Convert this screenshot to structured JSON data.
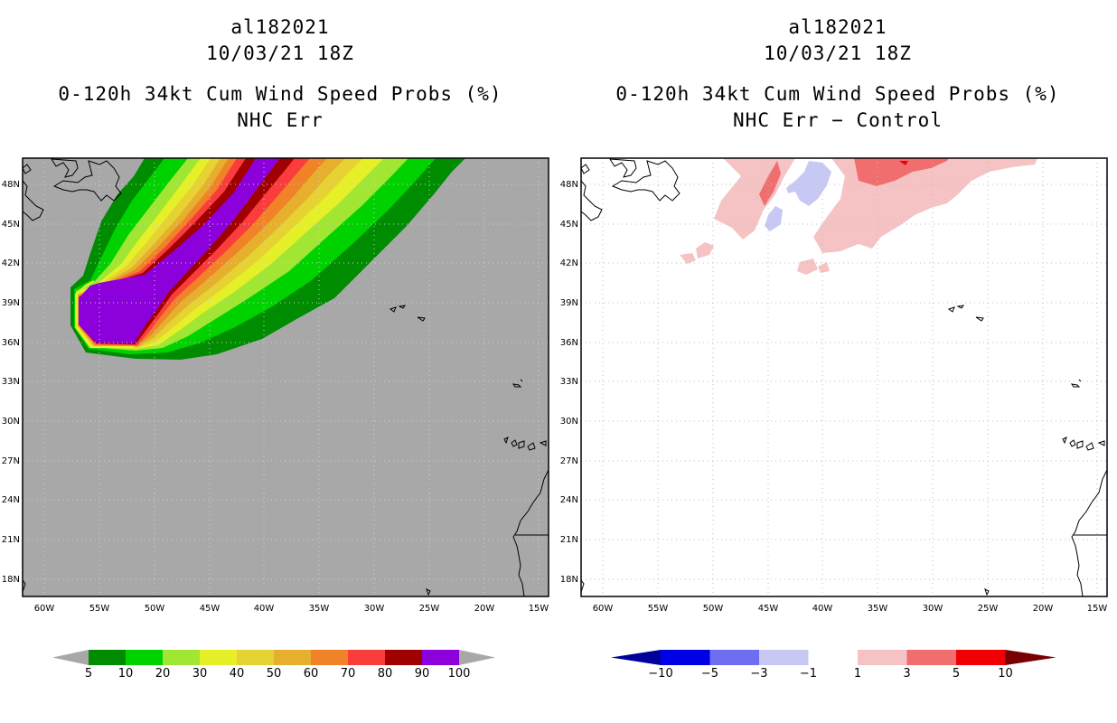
{
  "left": {
    "storm_id": "al182021",
    "datetime": "10/03/21 18Z",
    "product": "0-120h 34kt Cum Wind Speed Probs (%)",
    "subtitle": "NHC Err",
    "colorbar": {
      "labels": [
        "5",
        "10",
        "20",
        "30",
        "40",
        "50",
        "60",
        "70",
        "80",
        "90",
        "100"
      ],
      "colors": [
        "#008c00",
        "#00d200",
        "#a0e632",
        "#e6f028",
        "#e6d232",
        "#e6af2d",
        "#f08228",
        "#fa3c3c",
        "#a00000",
        "#8c00dc"
      ],
      "end_color": "#a8a8a8"
    }
  },
  "right": {
    "storm_id": "al182021",
    "datetime": "10/03/21 18Z",
    "product": "0-120h 34kt Cum Wind Speed Probs (%)",
    "subtitle": "NHC Err − Control",
    "colorbar": {
      "labels": [
        "−10",
        "−5",
        "−3",
        "−1",
        "1",
        "3",
        "5",
        "10"
      ],
      "colors": [
        "#0000e6",
        "#6e6ef0",
        "#c8c8f5",
        "#ffffff",
        "#f5c3c3",
        "#f06e6e",
        "#f00000"
      ],
      "low_color": "#00009b",
      "high_color": "#780000"
    }
  },
  "lat_labels": [
    "48N",
    "45N",
    "42N",
    "39N",
    "36N",
    "33N",
    "30N",
    "27N",
    "24N",
    "21N",
    "18N"
  ],
  "lon_labels": [
    "60W",
    "55W",
    "50W",
    "45W",
    "40W",
    "35W",
    "30W",
    "25W",
    "20W",
    "15W"
  ],
  "map_colors": {
    "background_left": "#a8a8a8",
    "background_right": "#ffffff"
  }
}
